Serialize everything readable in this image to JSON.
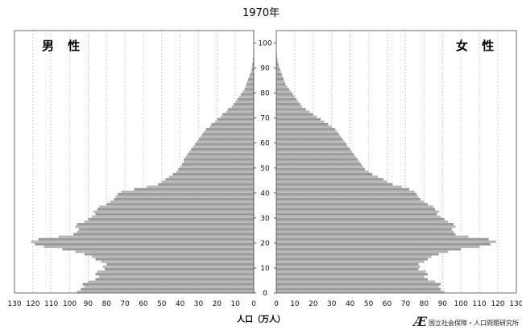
{
  "credit": "国立社会保障・人口問題研究所",
  "chart_data": {
    "type": "population-pyramid",
    "title": "1970年",
    "xlabel": "人口（万人）",
    "left_label": "男 性",
    "right_label": "女 性",
    "x_ticks": [
      130,
      120,
      110,
      100,
      90,
      80,
      70,
      60,
      50,
      40,
      30,
      20,
      10,
      0
    ],
    "x_range": [
      0,
      130
    ],
    "age_ticks": [
      0,
      10,
      20,
      30,
      40,
      50,
      60,
      70,
      80,
      90,
      100
    ],
    "age_range": [
      0,
      105
    ],
    "grid": "dotted-vertical",
    "series": [
      {
        "name": "男 性",
        "ages": [
          0,
          1,
          2,
          3,
          4,
          5,
          6,
          7,
          8,
          9,
          10,
          11,
          12,
          13,
          14,
          15,
          16,
          17,
          18,
          19,
          20,
          21,
          22,
          23,
          24,
          25,
          26,
          27,
          28,
          29,
          30,
          31,
          32,
          33,
          34,
          35,
          36,
          37,
          38,
          39,
          40,
          41,
          42,
          43,
          44,
          45,
          46,
          47,
          48,
          49,
          50,
          51,
          52,
          53,
          54,
          55,
          56,
          57,
          58,
          59,
          60,
          61,
          62,
          63,
          64,
          65,
          66,
          67,
          68,
          69,
          70,
          71,
          72,
          73,
          74,
          75,
          76,
          77,
          78,
          79,
          80,
          81,
          82,
          83,
          84,
          85,
          86,
          87,
          88,
          89,
          90,
          91,
          92,
          93,
          94,
          95
        ],
        "values": [
          96,
          94,
          92,
          93,
          90,
          86,
          84,
          86,
          85,
          81,
          82,
          80,
          83,
          86,
          88,
          92,
          97,
          104,
          114,
          119,
          121,
          117,
          106,
          98,
          96,
          95,
          97,
          96,
          92,
          90,
          88,
          86,
          87,
          85,
          84,
          80,
          78,
          76,
          75,
          74,
          72,
          65,
          58,
          52,
          50,
          48,
          46,
          44,
          42,
          41,
          40,
          39,
          38,
          38,
          37,
          36,
          35,
          34,
          33,
          32,
          31,
          30,
          29,
          28,
          27,
          26,
          24,
          23,
          21,
          20,
          18,
          17,
          15,
          14,
          12,
          11,
          10,
          9,
          8,
          7,
          6,
          5,
          4.5,
          4,
          3.5,
          3,
          2.5,
          2,
          1.5,
          1.2,
          1,
          0.8,
          0.6,
          0.4,
          0.3,
          0.2
        ]
      },
      {
        "name": "女 性",
        "ages": [
          0,
          1,
          2,
          3,
          4,
          5,
          6,
          7,
          8,
          9,
          10,
          11,
          12,
          13,
          14,
          15,
          16,
          17,
          18,
          19,
          20,
          21,
          22,
          23,
          24,
          25,
          26,
          27,
          28,
          29,
          30,
          31,
          32,
          33,
          34,
          35,
          36,
          37,
          38,
          39,
          40,
          41,
          42,
          43,
          44,
          45,
          46,
          47,
          48,
          49,
          50,
          51,
          52,
          53,
          54,
          55,
          56,
          57,
          58,
          59,
          60,
          61,
          62,
          63,
          64,
          65,
          66,
          67,
          68,
          69,
          70,
          71,
          72,
          73,
          74,
          75,
          76,
          77,
          78,
          79,
          80,
          81,
          82,
          83,
          84,
          85,
          86,
          87,
          88,
          89,
          90,
          91,
          92,
          93,
          94,
          95
        ],
        "values": [
          91,
          89,
          88,
          89,
          86,
          82,
          80,
          82,
          81,
          77,
          78,
          77,
          80,
          82,
          84,
          88,
          93,
          100,
          110,
          116,
          119,
          115,
          104,
          97,
          96,
          95,
          97,
          96,
          93,
          91,
          89,
          87,
          88,
          86,
          85,
          82,
          80,
          78,
          77,
          76,
          75,
          72,
          68,
          63,
          60,
          58,
          55,
          52,
          50,
          48,
          47,
          46,
          45,
          44,
          43,
          42,
          41,
          40,
          39,
          38,
          37,
          36,
          35,
          34,
          33,
          32,
          30,
          28,
          26,
          24,
          22,
          20,
          18,
          16,
          14,
          13,
          12,
          11,
          10,
          9,
          8,
          7,
          6,
          5,
          4.5,
          4,
          3.5,
          3,
          2.5,
          2,
          1.6,
          1.2,
          0.9,
          0.6,
          0.4,
          0.3
        ]
      }
    ]
  }
}
